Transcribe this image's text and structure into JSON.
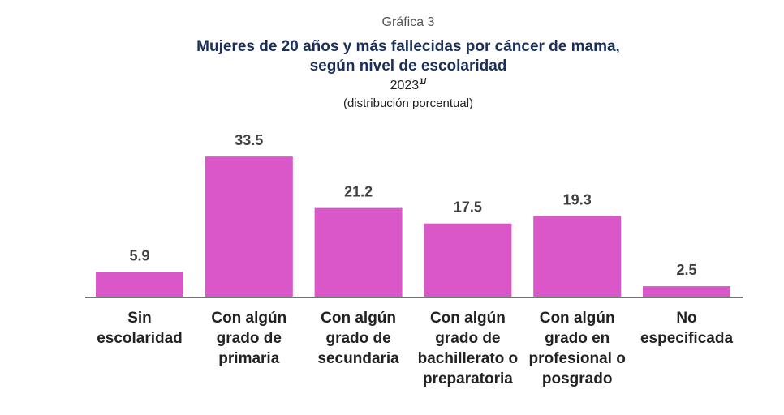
{
  "chart_data": {
    "type": "bar",
    "label": "Gráfica 3",
    "title": "Mujeres de 20 años y más fallecidas por cáncer de mama,",
    "title_line2": "según nivel de escolaridad",
    "year": "2023",
    "year_note": "1/",
    "subtitle": "(distribución porcentual)",
    "categories": [
      "Sin escolaridad",
      "Con algún grado de primaria",
      "Con algún grado de secundaria",
      "Con algún grado de bachillerato o preparatoria",
      "Con algún grado en profesional o posgrado",
      "No especificada"
    ],
    "values": [
      5.9,
      33.5,
      21.2,
      17.5,
      19.3,
      2.5
    ],
    "color": "#d957c8"
  }
}
